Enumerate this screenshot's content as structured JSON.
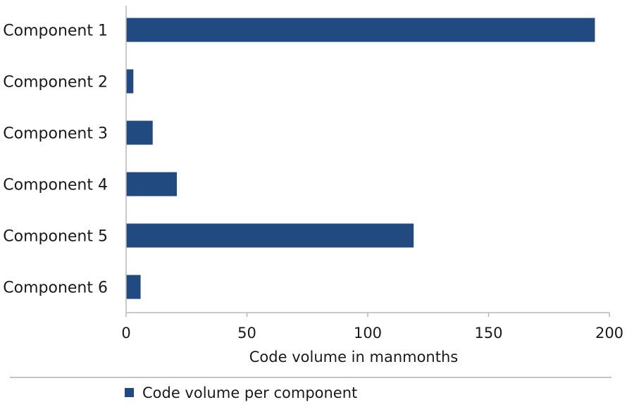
{
  "chart_data": {
    "type": "bar",
    "orientation": "horizontal",
    "categories": [
      "Component 1",
      "Component 2",
      "Component 3",
      "Component 4",
      "Component 5",
      "Component 6"
    ],
    "series": [
      {
        "name": "Code volume per component",
        "values": [
          194,
          3,
          11,
          21,
          119,
          6
        ]
      }
    ],
    "xlabel": "Code volume in manmonths",
    "ylabel": "",
    "xlim": [
      0,
      200
    ],
    "xticks": [
      0,
      50,
      100,
      150,
      200
    ],
    "grid": false,
    "legend": "bottom-center",
    "colors": {
      "bar": "#214a80",
      "axis": "#b8b8b8",
      "text": "#1a1a1a",
      "separator": "#8a8a8a"
    }
  }
}
